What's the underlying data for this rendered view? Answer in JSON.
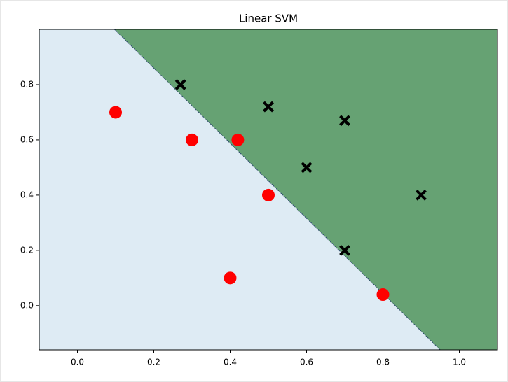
{
  "chart_data": {
    "type": "scatter",
    "title": "Linear SVM",
    "xlim": [
      -0.1,
      1.1
    ],
    "ylim": [
      -0.16,
      1.0
    ],
    "xticks": [
      {
        "value": 0,
        "label": "0.0"
      },
      0.2,
      0.4,
      0.6,
      0.8,
      {
        "value": 1,
        "label": "1.0"
      }
    ],
    "yticks": [
      {
        "value": 0,
        "label": "0.0"
      },
      0.2,
      0.4,
      0.6,
      0.8
    ],
    "regions": {
      "below_color": "#deebf4",
      "above_color": "#66a273",
      "boundary_x": [
        0.097,
        0.95
      ],
      "boundary_y": [
        1.0,
        -0.16
      ]
    },
    "series": [
      {
        "color": "#ff0000",
        "marker": "o",
        "x": [
          0.1,
          0.3,
          0.42,
          0.5,
          0.4,
          0.8
        ],
        "y": [
          0.7,
          0.6,
          0.6,
          0.4,
          0.1,
          0.04
        ]
      },
      {
        "color": "#000000",
        "marker": "x",
        "x": [
          0.27,
          0.5,
          0.7,
          0.6,
          0.9,
          0.7
        ],
        "y": [
          0.8,
          0.72,
          0.67,
          0.5,
          0.4,
          0.2
        ]
      }
    ]
  }
}
